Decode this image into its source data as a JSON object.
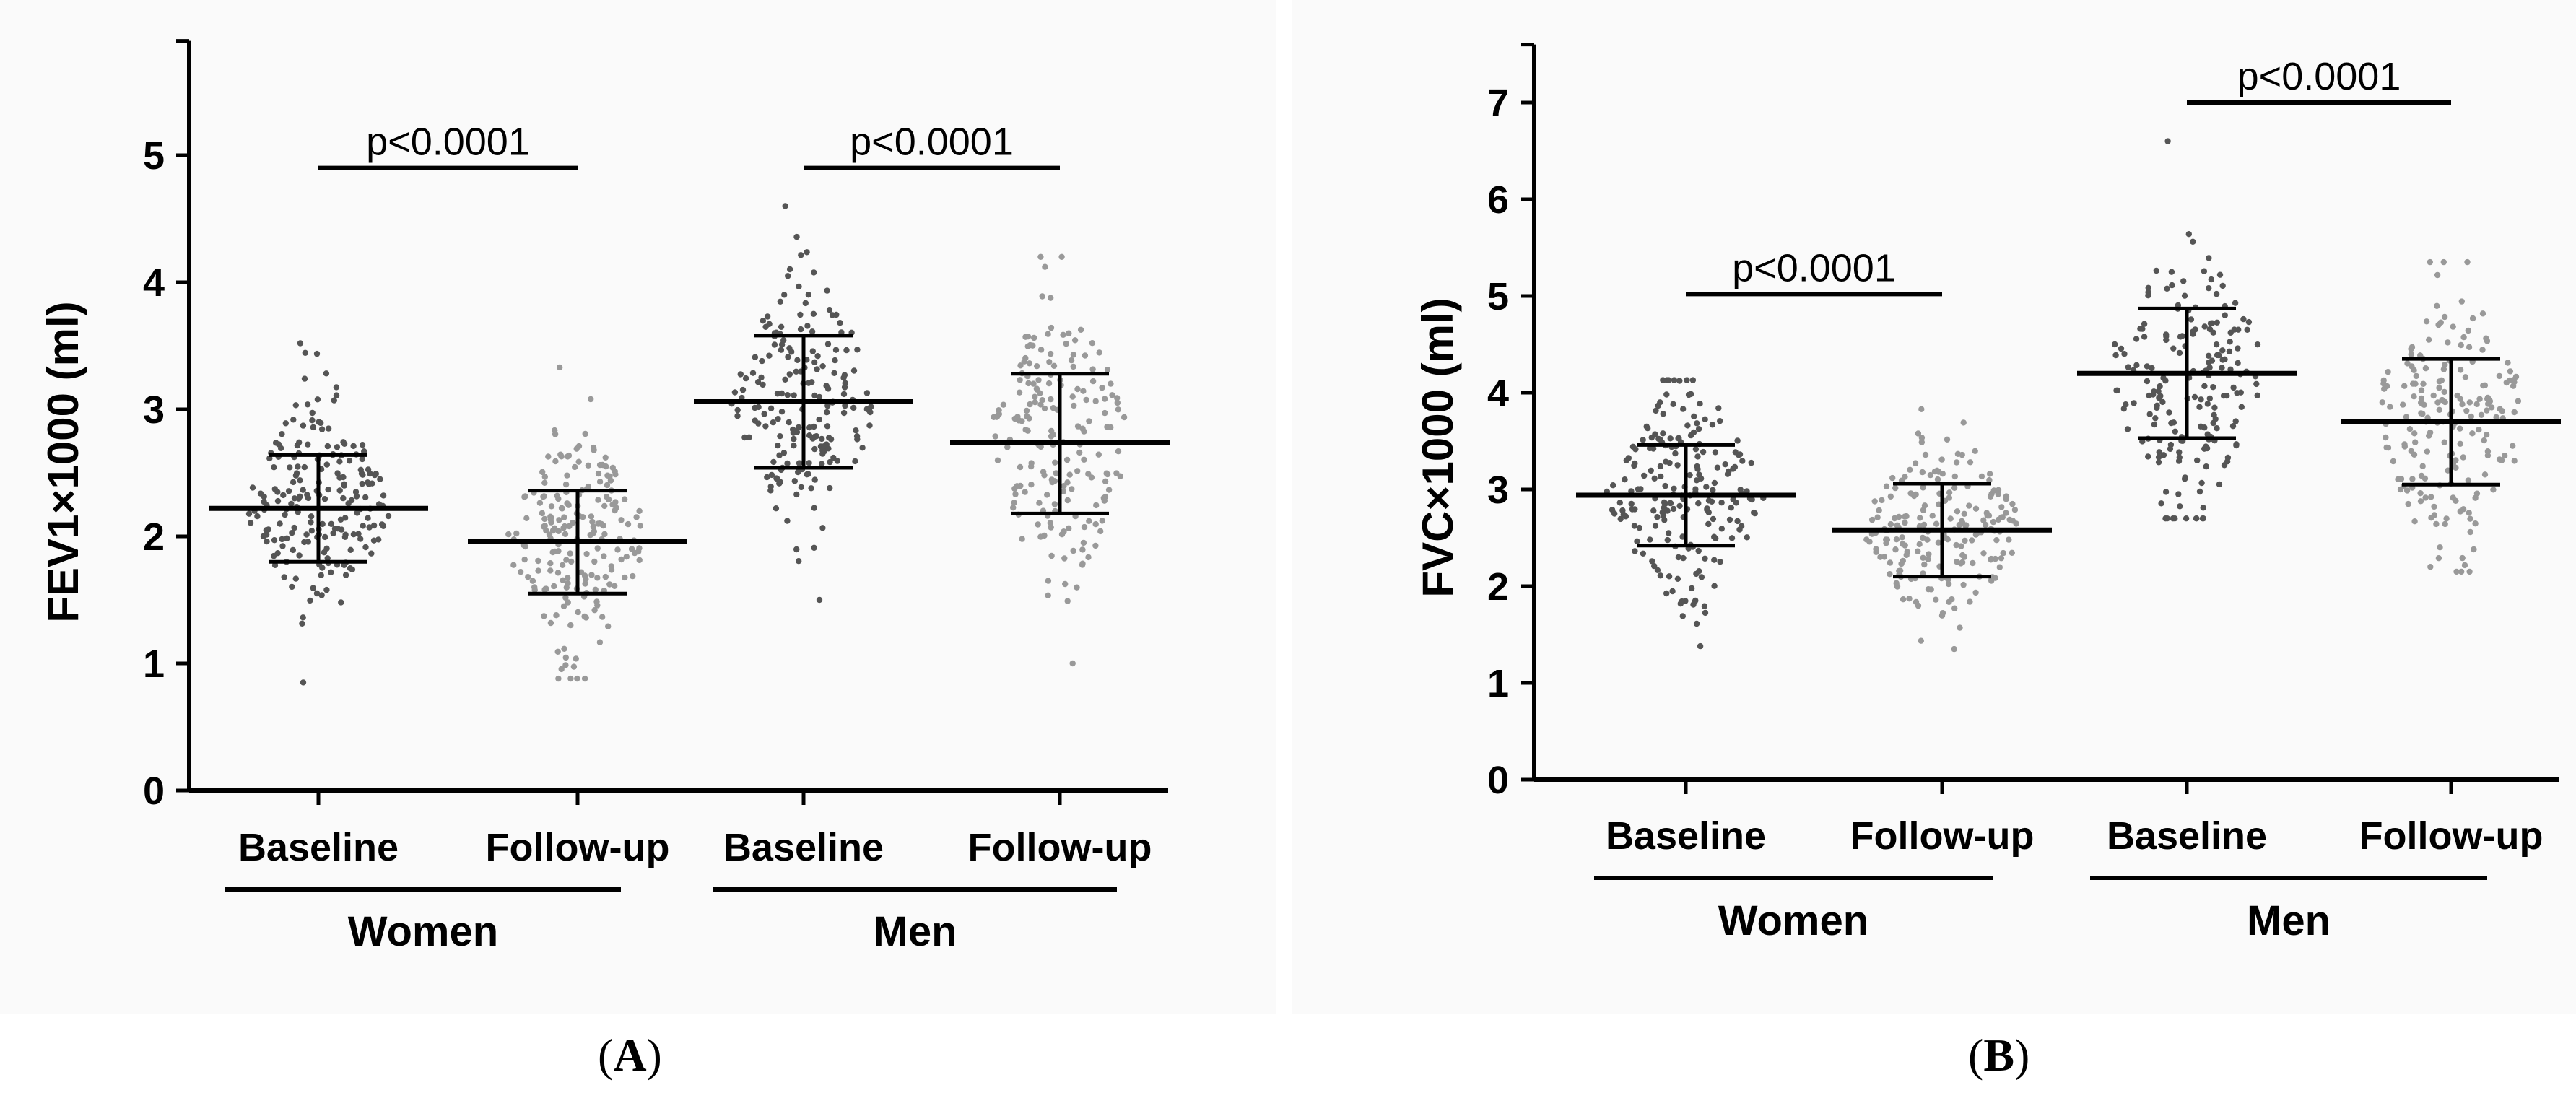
{
  "chart_data": [
    {
      "type": "scatter",
      "panel": "A",
      "caption": "A",
      "ylabel": "FEV1×1000 (ml)",
      "ylim": [
        0,
        5.9
      ],
      "yticks": [
        0,
        1,
        2,
        3,
        4,
        5
      ],
      "categories": [
        "Baseline",
        "Follow-up",
        "Baseline",
        "Follow-up"
      ],
      "groups": [
        {
          "name": "Women",
          "categories": [
            0,
            1
          ]
        },
        {
          "name": "Men",
          "categories": [
            2,
            3
          ]
        }
      ],
      "series": [
        {
          "name": "Women Baseline",
          "group": "Women",
          "color": "#555555",
          "mean": 2.22,
          "sd_low": 1.8,
          "sd_high": 2.64,
          "min": 0.85,
          "max": 3.52,
          "n": 200
        },
        {
          "name": "Women Follow-up",
          "group": "Women",
          "color": "#999999",
          "mean": 1.96,
          "sd_low": 1.55,
          "sd_high": 2.36,
          "min": 0.88,
          "max": 3.33,
          "n": 200
        },
        {
          "name": "Men Baseline",
          "group": "Men",
          "color": "#555555",
          "mean": 3.06,
          "sd_low": 2.54,
          "sd_high": 3.58,
          "min": 1.5,
          "max": 4.6,
          "n": 190
        },
        {
          "name": "Men Follow-up",
          "group": "Men",
          "color": "#999999",
          "mean": 2.74,
          "sd_low": 2.18,
          "sd_high": 3.28,
          "min": 1.0,
          "max": 4.2,
          "n": 190
        }
      ],
      "annotations": [
        {
          "text": "p<0.0001",
          "from": 0,
          "to": 1,
          "y": 4.9
        },
        {
          "text": "p<0.0001",
          "from": 2,
          "to": 3,
          "y": 4.9
        }
      ]
    },
    {
      "type": "scatter",
      "panel": "B",
      "caption": "B",
      "ylabel": "FVC×1000 (ml)",
      "ylim": [
        0,
        7.6
      ],
      "yticks": [
        0,
        1,
        2,
        3,
        4,
        5,
        6,
        7
      ],
      "categories": [
        "Baseline",
        "Follow-up",
        "Baseline",
        "Follow-up"
      ],
      "groups": [
        {
          "name": "Women",
          "categories": [
            0,
            1
          ]
        },
        {
          "name": "Men",
          "categories": [
            2,
            3
          ]
        }
      ],
      "series": [
        {
          "name": "Women Baseline",
          "group": "Women",
          "color": "#555555",
          "mean": 2.94,
          "sd_low": 2.42,
          "sd_high": 3.46,
          "min": 1.38,
          "max": 4.13,
          "n": 200
        },
        {
          "name": "Women Follow-up",
          "group": "Women",
          "color": "#999999",
          "mean": 2.58,
          "sd_low": 2.1,
          "sd_high": 3.06,
          "min": 1.35,
          "max": 3.83,
          "n": 200
        },
        {
          "name": "Men Baseline",
          "group": "Men",
          "color": "#555555",
          "mean": 4.2,
          "sd_low": 3.53,
          "sd_high": 4.87,
          "min": 2.7,
          "max": 6.6,
          "n": 190
        },
        {
          "name": "Men Follow-up",
          "group": "Men",
          "color": "#999999",
          "mean": 3.7,
          "sd_low": 3.05,
          "sd_high": 4.35,
          "min": 2.15,
          "max": 5.35,
          "n": 190
        }
      ],
      "annotations": [
        {
          "text": "p<0.0001",
          "from": 0,
          "to": 1,
          "y": 5.02
        },
        {
          "text": "p<0.0001",
          "from": 2,
          "to": 3,
          "y": 7.0
        }
      ]
    }
  ]
}
